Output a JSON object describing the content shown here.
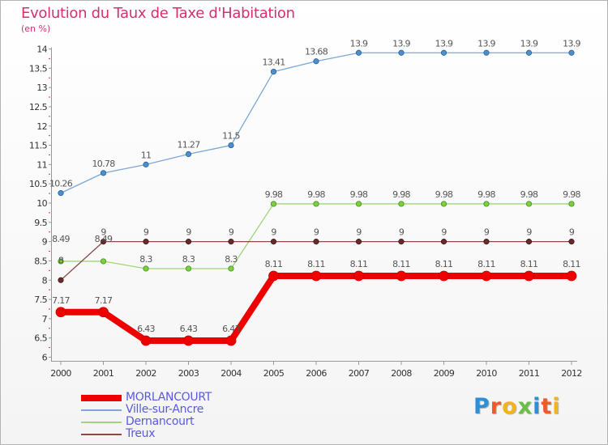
{
  "title": "Evolution du Taux de Taxe d'Habitation",
  "subtitle": "(en %)",
  "logo": {
    "letters": [
      "P",
      "r",
      "o",
      "x",
      "i",
      "t",
      "i"
    ],
    "colors": [
      "#2d8fd8",
      "#ef5a28",
      "#f2b31b",
      "#6cbe45",
      "#2d8fd8",
      "#ef5a28",
      "#f2b31b"
    ]
  },
  "chart_data": {
    "type": "line",
    "title": "Evolution du Taux de Taxe d'Habitation",
    "ylabel": "(en %)",
    "xlabel": "",
    "x": [
      "2000",
      "2001",
      "2002",
      "2003",
      "2004",
      "2005",
      "2006",
      "2007",
      "2008",
      "2009",
      "2010",
      "2011",
      "2012"
    ],
    "ylim": [
      6,
      14
    ],
    "yticks": [
      "6",
      "6.5",
      "7",
      "7.5",
      "8",
      "8.5",
      "9",
      "9.5",
      "10",
      "10.5",
      "11",
      "11.5",
      "12",
      "12.5",
      "13",
      "13.5",
      "14"
    ],
    "grid": false,
    "legend_position": "bottom-left",
    "series": [
      {
        "name": "MORLANCOURT",
        "color": "#ee0000",
        "values": [
          7.17,
          7.17,
          6.43,
          6.43,
          6.43,
          8.11,
          8.11,
          8.11,
          8.11,
          8.11,
          8.11,
          8.11,
          8.11
        ],
        "labels": [
          "7.17",
          "7.17",
          "6.43",
          "6.43",
          "6.43",
          "8.11",
          "8.11",
          "8.11",
          "8.11",
          "8.11",
          "8.11",
          "8.11",
          "8.11"
        ]
      },
      {
        "name": "Ville-sur-Ancre",
        "color": "#7ba8d6",
        "values": [
          10.26,
          10.78,
          11,
          11.27,
          11.5,
          13.41,
          13.68,
          13.9,
          13.9,
          13.9,
          13.9,
          13.9,
          13.9
        ],
        "labels": [
          "10.26",
          "10.78",
          "11",
          "11.27",
          "11.5",
          "13.41",
          "13.68",
          "13.9",
          "13.9",
          "13.9",
          "13.9",
          "13.9",
          "13.9"
        ]
      },
      {
        "name": "Dernancourt",
        "color": "#9ed67d",
        "values": [
          8.49,
          8.49,
          8.3,
          8.3,
          8.3,
          9.98,
          9.98,
          9.98,
          9.98,
          9.98,
          9.98,
          9.98,
          9.98
        ],
        "labels": [
          "8.49",
          "8.49",
          "8.3",
          "8.3",
          "8.3",
          "9.98",
          "9.98",
          "9.98",
          "9.98",
          "9.98",
          "9.98",
          "9.98",
          "9.98"
        ]
      },
      {
        "name": "Treux",
        "color": "#8a4a4a",
        "values": [
          8,
          9,
          9,
          9,
          9,
          9,
          9,
          9,
          9,
          9,
          9,
          9,
          9
        ],
        "labels": [
          "8",
          "9",
          "9",
          "9",
          "9",
          "9",
          "9",
          "9",
          "9",
          "9",
          "9",
          "9",
          "9"
        ]
      }
    ]
  }
}
